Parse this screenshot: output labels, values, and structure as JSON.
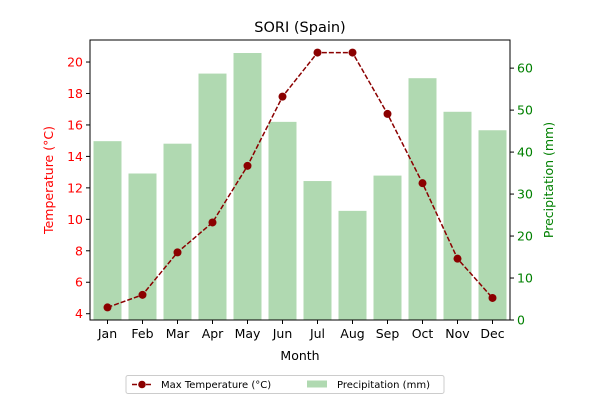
{
  "chart_data": {
    "type": "bar+line",
    "title": "SORI (Spain)",
    "xlabel": "Month",
    "ylabel_left": "Temperature (°C)",
    "ylabel_right": "Precipitation (mm)",
    "categories": [
      "Jan",
      "Feb",
      "Mar",
      "Apr",
      "May",
      "Jun",
      "Jul",
      "Aug",
      "Sep",
      "Oct",
      "Nov",
      "Dec"
    ],
    "left_ylim": [
      3.6,
      21.4
    ],
    "left_ticks": [
      4,
      6,
      8,
      10,
      12,
      14,
      16,
      18,
      20
    ],
    "right_ylim": [
      0,
      66.7
    ],
    "right_ticks": [
      0,
      10,
      20,
      30,
      40,
      50,
      60
    ],
    "series": [
      {
        "name": "Max Temperature (°C)",
        "kind": "line",
        "axis": "left",
        "color": "#8b0000",
        "values": [
          4.4,
          5.2,
          7.9,
          9.8,
          13.4,
          17.8,
          20.6,
          20.6,
          16.7,
          12.3,
          7.5,
          5.0
        ]
      },
      {
        "name": "Precipitation (mm)",
        "kind": "bar",
        "axis": "right",
        "color": "#b0d9b1",
        "values": [
          42.6,
          34.9,
          42.0,
          58.7,
          63.6,
          47.2,
          33.1,
          26.0,
          34.4,
          57.6,
          49.6,
          45.2
        ]
      }
    ],
    "colors": {
      "left_axis": "#ff0000",
      "right_axis": "#008000"
    },
    "grid": false,
    "legend_position": "bottom-center"
  }
}
